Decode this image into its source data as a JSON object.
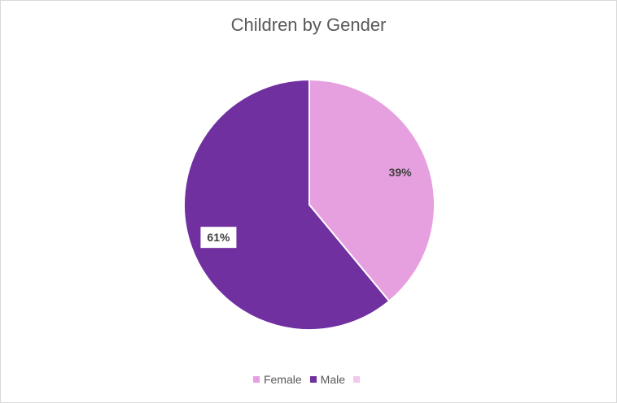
{
  "chart_data": {
    "type": "pie",
    "title": "Children by Gender",
    "categories": [
      "Female",
      "Male",
      ""
    ],
    "values": [
      39,
      61,
      0
    ],
    "labels": [
      "39%",
      "61%"
    ],
    "colors": [
      "#e6a0df",
      "#7030a0",
      "#f2c9ee"
    ],
    "legend_position": "bottom"
  }
}
